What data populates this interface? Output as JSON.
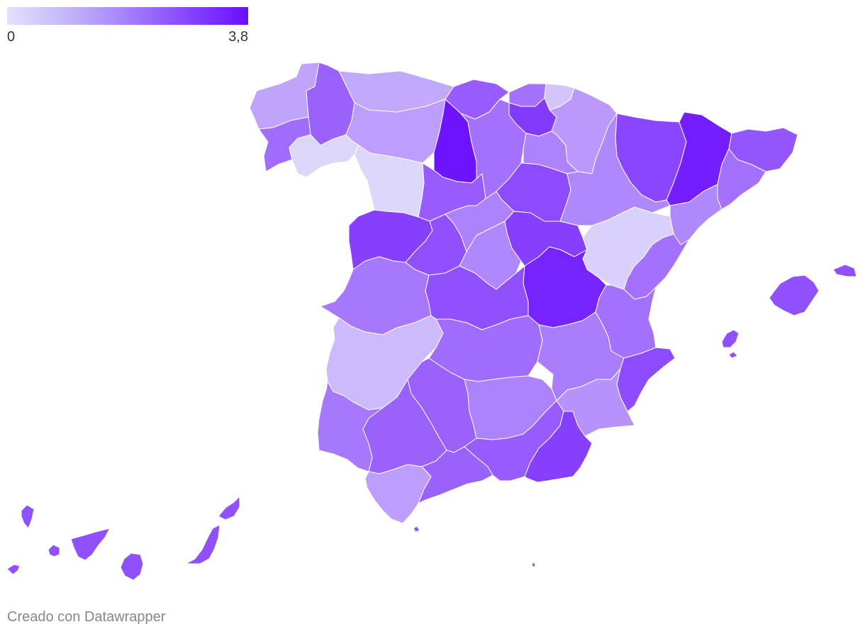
{
  "legend": {
    "min_label": "0",
    "max_label": "3,8",
    "min_value": 0,
    "max_value": 3.8,
    "color_low": "#e3e1fb",
    "color_high": "#6a0dff"
  },
  "credit": "Creado con Datawrapper",
  "stroke_color": "#ffffff",
  "regions": [
    {
      "id": "a-coruna",
      "value": 1.1
    },
    {
      "id": "lugo",
      "value": 2.3
    },
    {
      "id": "pontevedra",
      "value": 2.1
    },
    {
      "id": "ourense",
      "value": 0.2
    },
    {
      "id": "asturias",
      "value": 1.0
    },
    {
      "id": "cantabria",
      "value": 2.4
    },
    {
      "id": "bizkaia",
      "value": 2.0
    },
    {
      "id": "gipuzkoa",
      "value": 0.5
    },
    {
      "id": "araba",
      "value": 3.0
    },
    {
      "id": "navarra",
      "value": 1.3
    },
    {
      "id": "leon",
      "value": 1.2
    },
    {
      "id": "palencia",
      "value": 3.7
    },
    {
      "id": "burgos",
      "value": 2.0
    },
    {
      "id": "la-rioja",
      "value": 1.7
    },
    {
      "id": "zamora",
      "value": 0.2
    },
    {
      "id": "valladolid",
      "value": 2.4
    },
    {
      "id": "soria",
      "value": 2.7
    },
    {
      "id": "huesca",
      "value": 2.8
    },
    {
      "id": "lleida",
      "value": 3.5
    },
    {
      "id": "girona",
      "value": 2.5
    },
    {
      "id": "barcelona",
      "value": 2.0
    },
    {
      "id": "tarragona",
      "value": 1.6
    },
    {
      "id": "zaragoza",
      "value": 1.6
    },
    {
      "id": "salamanca",
      "value": 2.9
    },
    {
      "id": "avila",
      "value": 2.6
    },
    {
      "id": "segovia",
      "value": 1.7
    },
    {
      "id": "madrid",
      "value": 1.6
    },
    {
      "id": "guadalajara",
      "value": 2.9
    },
    {
      "id": "teruel",
      "value": 0.3
    },
    {
      "id": "castellon",
      "value": 2.0
    },
    {
      "id": "caceres",
      "value": 1.9
    },
    {
      "id": "toledo",
      "value": 2.6
    },
    {
      "id": "cuenca",
      "value": 3.4
    },
    {
      "id": "valencia",
      "value": 2.0
    },
    {
      "id": "badajoz",
      "value": 0.7
    },
    {
      "id": "ciudad-real",
      "value": 2.1
    },
    {
      "id": "albacete",
      "value": 1.8
    },
    {
      "id": "alicante",
      "value": 2.7
    },
    {
      "id": "huelva",
      "value": 1.9
    },
    {
      "id": "sevilla",
      "value": 2.3
    },
    {
      "id": "cordoba",
      "value": 2.3
    },
    {
      "id": "jaen",
      "value": 1.7
    },
    {
      "id": "murcia",
      "value": 1.4
    },
    {
      "id": "cadiz",
      "value": 1.2
    },
    {
      "id": "malaga",
      "value": 2.3
    },
    {
      "id": "granada",
      "value": 2.4
    },
    {
      "id": "almeria",
      "value": 2.9
    },
    {
      "id": "mallorca",
      "value": 2.6
    },
    {
      "id": "menorca",
      "value": 2.6
    },
    {
      "id": "ibiza",
      "value": 2.6
    },
    {
      "id": "formentera",
      "value": 2.6
    },
    {
      "id": "tenerife",
      "value": 2.6
    },
    {
      "id": "la-palma",
      "value": 2.6
    },
    {
      "id": "la-gomera",
      "value": 2.6
    },
    {
      "id": "el-hierro",
      "value": 2.6
    },
    {
      "id": "gran-canaria",
      "value": 2.6
    },
    {
      "id": "fuerteventura",
      "value": 2.6
    },
    {
      "id": "lanzarote",
      "value": 2.6
    },
    {
      "id": "ceuta",
      "value": 2.6
    },
    {
      "id": "melilla",
      "value": 2.6
    }
  ]
}
